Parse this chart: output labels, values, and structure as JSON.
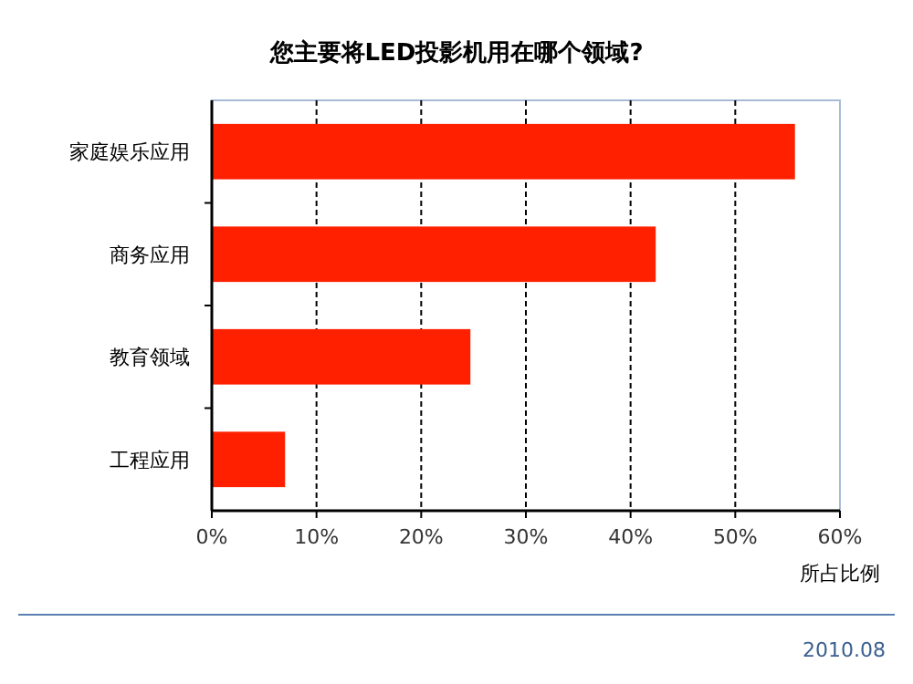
{
  "chart_data": {
    "type": "bar",
    "orientation": "horizontal",
    "title": "您主要将LED投影机用在哪个领域?",
    "xlabel": "所占比例",
    "categories": [
      "家庭娱乐应用",
      "商务应用",
      "教育领域",
      "工程应用"
    ],
    "values": [
      55.7,
      42.4,
      24.7,
      7.0
    ],
    "color": "#ff2000",
    "xlim": [
      0,
      60
    ],
    "xticks": [
      {
        "value": 0,
        "label": "0%"
      },
      {
        "value": 10,
        "label": "10%"
      },
      {
        "value": 20,
        "label": "20%"
      },
      {
        "value": 30,
        "label": "30%"
      },
      {
        "value": 40,
        "label": "40%"
      },
      {
        "value": 50,
        "label": "50%"
      },
      {
        "value": 60,
        "label": "60%"
      }
    ],
    "grid": "x",
    "annotations": [
      "2010.08"
    ]
  }
}
